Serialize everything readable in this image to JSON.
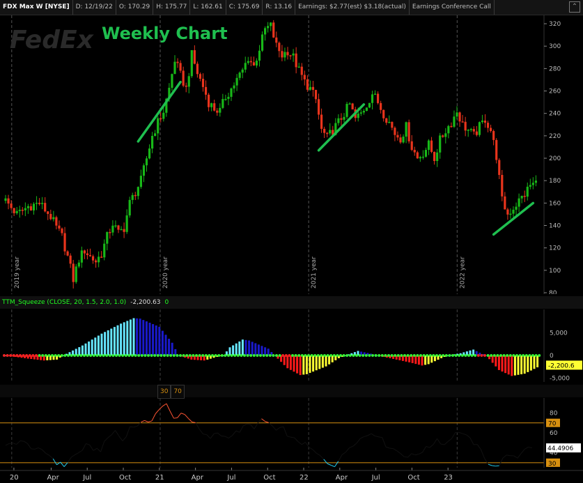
{
  "header": {
    "symbol": "FDX Max W [NYSE]",
    "date": "D: 12/19/22",
    "open": "O: 170.29",
    "high": "H: 175.77",
    "low": "L: 162.61",
    "close": "C: 175.69",
    "range": "R: 13.16",
    "earnings": "Earnings: $2.77(est) $3.18(actual)",
    "event": "Earnings Conference Call"
  },
  "overlay": {
    "watermark": "FedEx",
    "title": "Weekly Chart",
    "year_labels": [
      "2019 year",
      "2020 year",
      "2021 year",
      "2022 year"
    ]
  },
  "squeeze": {
    "label": "TTM_Squeeze (CLOSE, 20, 1.5, 2.0, 1.0)",
    "value": "-2,200.63",
    "alert": "0",
    "current_label": "-2,200.6"
  },
  "rsi": {
    "levels": [
      "30",
      "70"
    ],
    "current_label": "44.4906",
    "level_70_label": "70",
    "level_30_label": "30"
  },
  "x_axis": {
    "ticks": [
      "20",
      "Apr",
      "Jul",
      "Oct",
      "21",
      "Apr",
      "Jul",
      "Oct",
      "22",
      "Apr",
      "Jul",
      "Oct",
      "23"
    ]
  },
  "colors": {
    "up": "#18b818",
    "down": "#e8341c",
    "trend": "#1fbf4f",
    "title": "#1fbf4f",
    "sq_cyan": "#66e6ff",
    "sq_blue": "#1a1acc",
    "sq_red": "#ff1a1a",
    "sq_yellow": "#ffff33",
    "dot_green": "#33ee33",
    "dot_red": "#ee2222",
    "rsi_line": "#111111",
    "rsi_overbought": "#ff5533",
    "rsi_oversold": "#22ccee",
    "level_line": "#d89010"
  },
  "chart_data": [
    {
      "type": "candlestick",
      "title": "FDX Max W [NYSE]",
      "y_ticks": [
        80,
        100,
        120,
        140,
        160,
        180,
        200,
        220,
        240,
        260,
        280,
        300,
        320
      ],
      "ylim": [
        80,
        325
      ],
      "x_ticks": [
        "20",
        "Apr",
        "Jul",
        "Oct",
        "21",
        "Apr",
        "Jul",
        "Oct",
        "22",
        "Apr",
        "Jul",
        "Oct",
        "23"
      ],
      "trend_lines": [
        {
          "from": [
            "2020-09",
            215
          ],
          "to": [
            "2020-12",
            268
          ]
        },
        {
          "from": [
            "2021-09",
            207
          ],
          "to": [
            "2021-12",
            248
          ]
        },
        {
          "from": [
            "2022-09",
            132
          ],
          "to": [
            "2022-12",
            160
          ]
        }
      ],
      "weekly_close_path": [
        [
          0,
          162
        ],
        [
          4,
          150
        ],
        [
          8,
          157
        ],
        [
          12,
          160
        ],
        [
          16,
          148
        ],
        [
          18,
          138
        ],
        [
          20,
          130
        ],
        [
          22,
          112
        ],
        [
          24,
          92
        ],
        [
          26,
          110
        ],
        [
          28,
          118
        ],
        [
          30,
          112
        ],
        [
          32,
          108
        ],
        [
          34,
          115
        ],
        [
          36,
          130
        ],
        [
          38,
          142
        ],
        [
          40,
          133
        ],
        [
          42,
          138
        ],
        [
          44,
          160
        ],
        [
          46,
          170
        ],
        [
          48,
          180
        ],
        [
          50,
          200
        ],
        [
          52,
          220
        ],
        [
          54,
          232
        ],
        [
          56,
          242
        ],
        [
          58,
          262
        ],
        [
          60,
          288
        ],
        [
          62,
          274
        ],
        [
          64,
          262
        ],
        [
          66,
          292
        ],
        [
          68,
          276
        ],
        [
          70,
          264
        ],
        [
          72,
          250
        ],
        [
          74,
          244
        ],
        [
          76,
          242
        ],
        [
          78,
          255
        ],
        [
          80,
          262
        ],
        [
          82,
          270
        ],
        [
          84,
          278
        ],
        [
          86,
          290
        ],
        [
          88,
          282
        ],
        [
          90,
          298
        ],
        [
          92,
          315
        ],
        [
          94,
          318
        ],
        [
          96,
          300
        ],
        [
          98,
          292
        ],
        [
          100,
          296
        ],
        [
          102,
          290
        ],
        [
          104,
          278
        ],
        [
          106,
          268
        ],
        [
          108,
          262
        ],
        [
          110,
          252
        ],
        [
          112,
          225
        ],
        [
          114,
          218
        ],
        [
          116,
          225
        ],
        [
          118,
          232
        ],
        [
          120,
          240
        ],
        [
          122,
          248
        ],
        [
          124,
          235
        ],
        [
          126,
          240
        ],
        [
          128,
          248
        ],
        [
          130,
          258
        ],
        [
          132,
          250
        ],
        [
          134,
          240
        ],
        [
          136,
          232
        ],
        [
          138,
          222
        ],
        [
          140,
          218
        ],
        [
          142,
          228
        ],
        [
          144,
          210
        ],
        [
          146,
          200
        ],
        [
          148,
          205
        ],
        [
          150,
          212
        ],
        [
          152,
          200
        ],
        [
          154,
          216
        ],
        [
          156,
          225
        ],
        [
          158,
          232
        ],
        [
          160,
          242
        ],
        [
          162,
          230
        ],
        [
          164,
          225
        ],
        [
          166,
          220
        ],
        [
          168,
          228
        ],
        [
          170,
          235
        ],
        [
          172,
          225
        ],
        [
          174,
          202
        ],
        [
          176,
          162
        ],
        [
          178,
          150
        ],
        [
          180,
          156
        ],
        [
          182,
          162
        ],
        [
          184,
          168
        ],
        [
          186,
          176
        ],
        [
          188,
          178
        ],
        [
          190,
          174
        ],
        [
          192,
          176
        ]
      ]
    },
    {
      "type": "bar",
      "title": "TTM_Squeeze (CLOSE, 20, 1.5, 2.0, 1.0)",
      "y_ticks": [
        -5000,
        0,
        5000
      ],
      "ylim": [
        -5200,
        9500
      ],
      "current_value": -2200.63,
      "histogram_path": [
        [
          0,
          0
        ],
        [
          6,
          -600
        ],
        [
          12,
          -1100
        ],
        [
          16,
          -900
        ],
        [
          18,
          0
        ],
        [
          24,
          2200
        ],
        [
          30,
          4800
        ],
        [
          36,
          7000
        ],
        [
          40,
          8200
        ],
        [
          42,
          8100
        ],
        [
          48,
          6300
        ],
        [
          52,
          2800
        ],
        [
          54,
          0
        ],
        [
          58,
          -900
        ],
        [
          62,
          -1100
        ],
        [
          66,
          -300
        ],
        [
          68,
          0
        ],
        [
          70,
          1800
        ],
        [
          74,
          3500
        ],
        [
          76,
          3300
        ],
        [
          82,
          1500
        ],
        [
          84,
          0
        ],
        [
          88,
          -2800
        ],
        [
          92,
          -4300
        ],
        [
          94,
          -4100
        ],
        [
          100,
          -2400
        ],
        [
          104,
          -600
        ],
        [
          106,
          0
        ],
        [
          110,
          1000
        ],
        [
          114,
          400
        ],
        [
          116,
          0
        ],
        [
          120,
          -600
        ],
        [
          126,
          -1500
        ],
        [
          130,
          -2200
        ],
        [
          132,
          -1900
        ],
        [
          136,
          -600
        ],
        [
          138,
          0
        ],
        [
          142,
          500
        ],
        [
          146,
          1300
        ],
        [
          148,
          600
        ],
        [
          150,
          0
        ],
        [
          154,
          -3200
        ],
        [
          158,
          -4500
        ],
        [
          162,
          -4000
        ],
        [
          166,
          -2600
        ],
        [
          168,
          -2200
        ]
      ]
    },
    {
      "type": "line",
      "title": "RSI",
      "y_ticks": [
        40,
        60,
        80
      ],
      "ylim": [
        25,
        95
      ],
      "levels": [
        30,
        70
      ],
      "current_value": 44.4906,
      "values_path": [
        [
          0,
          46
        ],
        [
          4,
          52
        ],
        [
          8,
          44
        ],
        [
          12,
          38
        ],
        [
          14,
          30
        ],
        [
          16,
          27
        ],
        [
          18,
          35
        ],
        [
          20,
          40
        ],
        [
          22,
          47
        ],
        [
          24,
          44
        ],
        [
          26,
          43
        ],
        [
          28,
          55
        ],
        [
          30,
          62
        ],
        [
          32,
          52
        ],
        [
          34,
          65
        ],
        [
          36,
          68
        ],
        [
          38,
          70
        ],
        [
          40,
          74
        ],
        [
          42,
          84
        ],
        [
          44,
          88
        ],
        [
          46,
          74
        ],
        [
          48,
          80
        ],
        [
          50,
          76
        ],
        [
          52,
          68
        ],
        [
          54,
          58
        ],
        [
          56,
          55
        ],
        [
          58,
          60
        ],
        [
          60,
          56
        ],
        [
          62,
          58
        ],
        [
          64,
          62
        ],
        [
          66,
          68
        ],
        [
          68,
          66
        ],
        [
          70,
          72
        ],
        [
          72,
          70
        ],
        [
          74,
          62
        ],
        [
          76,
          64
        ],
        [
          78,
          54
        ],
        [
          80,
          52
        ],
        [
          82,
          48
        ],
        [
          84,
          42
        ],
        [
          86,
          36
        ],
        [
          88,
          30
        ],
        [
          90,
          28
        ],
        [
          92,
          36
        ],
        [
          94,
          46
        ],
        [
          96,
          52
        ],
        [
          98,
          56
        ],
        [
          100,
          60
        ],
        [
          102,
          58
        ],
        [
          104,
          48
        ],
        [
          106,
          44
        ],
        [
          108,
          40
        ],
        [
          110,
          36
        ],
        [
          112,
          38
        ],
        [
          114,
          42
        ],
        [
          116,
          46
        ],
        [
          118,
          54
        ],
        [
          120,
          48
        ],
        [
          122,
          56
        ],
        [
          124,
          62
        ],
        [
          126,
          56
        ],
        [
          128,
          50
        ],
        [
          130,
          42
        ],
        [
          132,
          30
        ],
        [
          134,
          25
        ],
        [
          136,
          33
        ],
        [
          138,
          38
        ],
        [
          140,
          36
        ],
        [
          142,
          45
        ],
        [
          144,
          44
        ]
      ]
    }
  ]
}
